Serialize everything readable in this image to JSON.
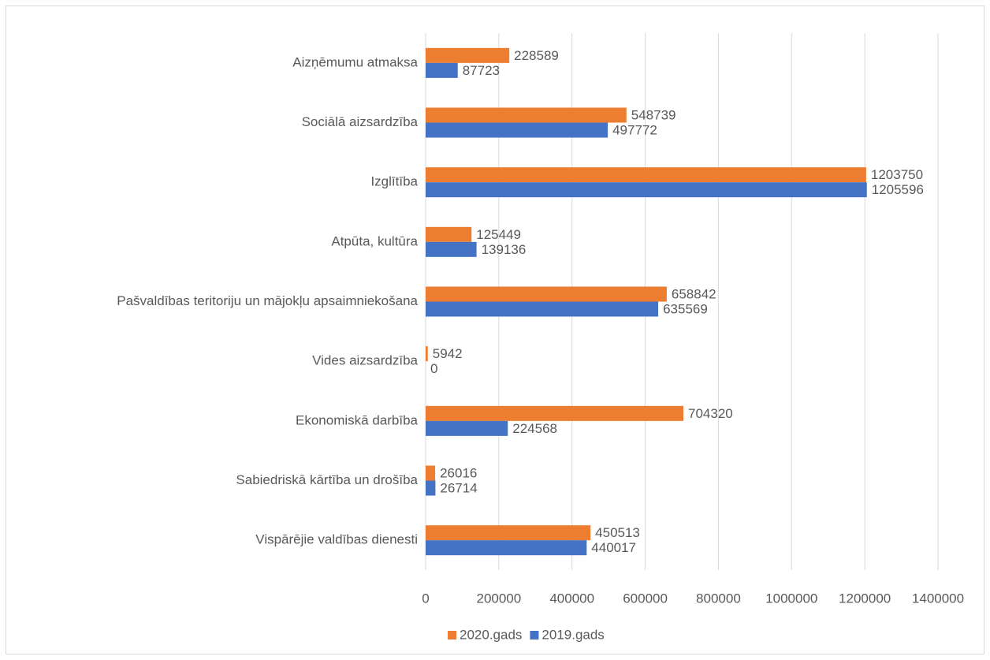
{
  "chart_data": {
    "type": "bar",
    "orientation": "horizontal",
    "categories": [
      "Aizņēmumu atmaksa",
      "Sociālā aizsardzība",
      "Izglītība",
      "Atpūta, kultūra",
      "Pašvaldības teritoriju un mājokļu apsaimniekošana",
      "Vides aizsardzība",
      "Ekonomiskā darbība",
      "Sabiedriskā kārtība un drošība",
      "Vispārējie valdības dienesti"
    ],
    "series": [
      {
        "name": "2020.gads",
        "color": "#ed7d31",
        "values": [
          228589,
          548739,
          1203750,
          125449,
          658842,
          5942,
          704320,
          26016,
          450513
        ]
      },
      {
        "name": "2019.gads",
        "color": "#4472c4",
        "values": [
          87723,
          497772,
          1205596,
          139136,
          635569,
          0,
          224568,
          26714,
          440017
        ]
      }
    ],
    "xlim": [
      0,
      1400000
    ],
    "xticks": [
      0,
      200000,
      400000,
      600000,
      800000,
      1000000,
      1200000,
      1400000
    ],
    "grid": true,
    "legend": "bottom"
  }
}
